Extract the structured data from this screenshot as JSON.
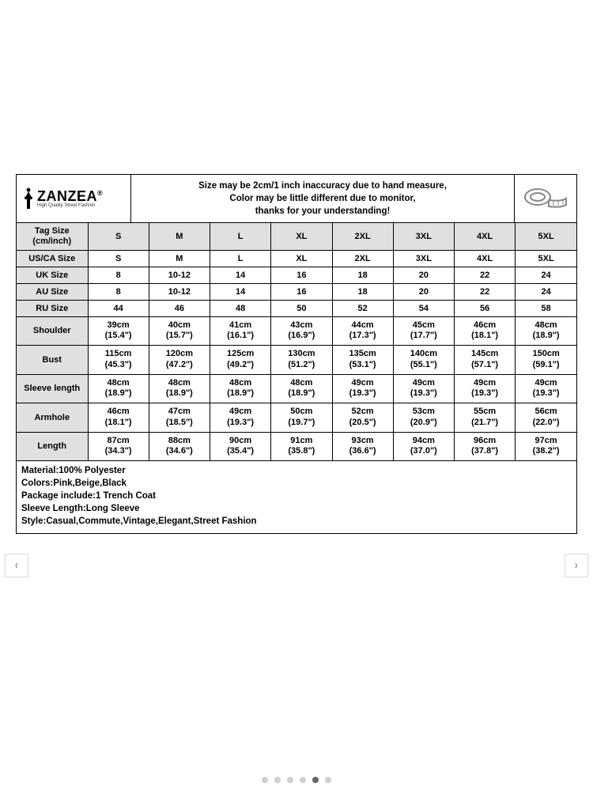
{
  "brand": {
    "name": "ZANZEA",
    "tagline": "High Quality Street Fashion",
    "reg": "®"
  },
  "notice": {
    "l1": "Size may be 2cm/1 inch inaccuracy due to hand measure,",
    "l2": "Color may be little different due to monitor,",
    "l3": "thanks for your understanding!"
  },
  "columns": [
    "S",
    "M",
    "L",
    "XL",
    "2XL",
    "3XL",
    "4XL",
    "5XL"
  ],
  "header_label_l1": "Tag Size",
  "header_label_l2": "(cm/inch)",
  "int_rows": [
    {
      "label": "US/CA Size",
      "vals": [
        "S",
        "M",
        "L",
        "XL",
        "2XL",
        "3XL",
        "4XL",
        "5XL"
      ]
    },
    {
      "label": "UK Size",
      "vals": [
        "8",
        "10-12",
        "14",
        "16",
        "18",
        "20",
        "22",
        "24"
      ]
    },
    {
      "label": "AU Size",
      "vals": [
        "8",
        "10-12",
        "14",
        "16",
        "18",
        "20",
        "22",
        "24"
      ]
    },
    {
      "label": "RU Size",
      "vals": [
        "44",
        "46",
        "48",
        "50",
        "52",
        "54",
        "56",
        "58"
      ]
    }
  ],
  "meas_rows": [
    {
      "label": "Shoulder",
      "cm": [
        "39cm",
        "40cm",
        "41cm",
        "43cm",
        "44cm",
        "45cm",
        "46cm",
        "48cm"
      ],
      "in": [
        "(15.4\")",
        "(15.7\")",
        "(16.1\")",
        "(16.9\")",
        "(17.3\")",
        "(17.7\")",
        "(18.1\")",
        "(18.9\")"
      ]
    },
    {
      "label": "Bust",
      "cm": [
        "115cm",
        "120cm",
        "125cm",
        "130cm",
        "135cm",
        "140cm",
        "145cm",
        "150cm"
      ],
      "in": [
        "(45.3\")",
        "(47.2\")",
        "(49.2\")",
        "(51.2\")",
        "(53.1\")",
        "(55.1\")",
        "(57.1\")",
        "(59.1\")"
      ]
    },
    {
      "label": "Sleeve length",
      "cm": [
        "48cm",
        "48cm",
        "48cm",
        "48cm",
        "49cm",
        "49cm",
        "49cm",
        "49cm"
      ],
      "in": [
        "(18.9\")",
        "(18.9\")",
        "(18.9\")",
        "(18.9\")",
        "(19.3\")",
        "(19.3\")",
        "(19.3\")",
        "(19.3\")"
      ]
    },
    {
      "label": "Armhole",
      "cm": [
        "46cm",
        "47cm",
        "49cm",
        "50cm",
        "52cm",
        "53cm",
        "55cm",
        "56cm"
      ],
      "in": [
        "(18.1\")",
        "(18.5\")",
        "(19.3\")",
        "(19.7\")",
        "(20.5\")",
        "(20.9\")",
        "(21.7\")",
        "(22.0\")"
      ]
    },
    {
      "label": "Length",
      "cm": [
        "87cm",
        "88cm",
        "90cm",
        "91cm",
        "93cm",
        "94cm",
        "96cm",
        "97cm"
      ],
      "in": [
        "(34.3\")",
        "(34.6\")",
        "(35.4\")",
        "(35.8\")",
        "(36.6\")",
        "(37.0\")",
        "(37.8\")",
        "(38.2\")"
      ]
    }
  ],
  "footer": [
    "Material:100% Polyester",
    "Colors:Pink,Beige,Black",
    "Package include:1 Trench Coat",
    "Sleeve Length:Long Sleeve",
    "Style:Casual,Commute,Vintage,Elegant,Street Fashion"
  ],
  "gallery": {
    "dots": 6,
    "active": 4,
    "prev_glyph": "‹",
    "next_glyph": "›"
  },
  "style": {
    "header_bg": "#e0e0e0",
    "border": "#000000",
    "text": "#000000",
    "font_size_cell": 11,
    "font_size_header": 11.5
  }
}
